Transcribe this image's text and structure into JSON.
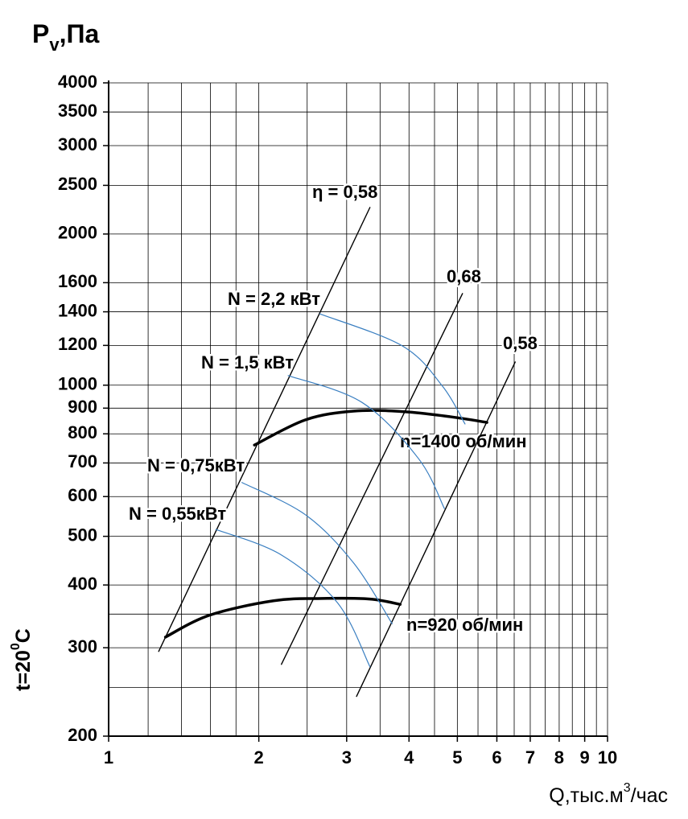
{
  "chart_data": {
    "type": "line",
    "y_label": {
      "main": "P",
      "sub": "v",
      "rest": ",Па"
    },
    "x_label": {
      "main": "Q,тыс.м",
      "sup": "3",
      "rest": "/час"
    },
    "side_label": {
      "main": "t=20",
      "sup": "0",
      "rest": "C"
    },
    "xscale": "log",
    "yscale": "log",
    "grid": true,
    "xlim": [
      1,
      10
    ],
    "ylim": [
      200,
      4000
    ],
    "xticks": [
      1,
      2,
      3,
      4,
      5,
      6,
      7,
      8,
      9,
      10
    ],
    "xminor": [
      1.2,
      1.4,
      1.6,
      1.8,
      2.5,
      3.5,
      4.5,
      5.5,
      6.5,
      7.5,
      8.5,
      9.5
    ],
    "yticks": [
      200,
      300,
      400,
      500,
      600,
      700,
      800,
      900,
      1000,
      1200,
      1400,
      1600,
      2000,
      2500,
      3000,
      3500,
      4000
    ],
    "yminor": [
      250,
      350
    ],
    "series": [
      {
        "name": "n=1400 об/мин",
        "color": "#000000",
        "width": 3.5,
        "x": [
          1.96,
          2.48,
          3.1,
          3.88,
          4.85,
          5.73
        ],
        "values": [
          760,
          853,
          888,
          886,
          865,
          843
        ]
      },
      {
        "name": "n=920 об/мин",
        "color": "#000000",
        "width": 3.5,
        "x": [
          1.3,
          1.59,
          2.14,
          2.68,
          3.34,
          3.84
        ],
        "values": [
          315,
          348,
          372,
          376,
          375,
          366
        ]
      },
      {
        "name": "η = 0,58",
        "color": "#000000",
        "width": 1.4,
        "x": [
          1.26,
          3.34
        ],
        "values": [
          295,
          2259
        ]
      },
      {
        "name": "0,68",
        "color": "#000000",
        "width": 1.4,
        "x": [
          2.22,
          5.12
        ],
        "values": [
          278,
          1522
        ]
      },
      {
        "name": "0,58",
        "color": "#000000",
        "width": 1.4,
        "x": [
          3.14,
          6.53
        ],
        "values": [
          240,
          1112
        ]
      },
      {
        "name": "N = 2,2 кВт",
        "color": "#3a7fc1",
        "width": 1.2,
        "x": [
          2.65,
          3.88,
          4.67,
          5.18
        ],
        "values": [
          1387,
          1197,
          995,
          837
        ]
      },
      {
        "name": "N = 1,5 кВт",
        "color": "#3a7fc1",
        "width": 1.2,
        "x": [
          2.29,
          3.22,
          4.18,
          4.71
        ],
        "values": [
          1045,
          924,
          714,
          568
        ]
      },
      {
        "name": "N = 0,75кВт",
        "color": "#3a7fc1",
        "width": 1.2,
        "x": [
          1.85,
          2.48,
          3.1,
          3.7
        ],
        "values": [
          640,
          552,
          442,
          335
        ]
      },
      {
        "name": "N = 0,55кВт",
        "color": "#3a7fc1",
        "width": 1.2,
        "x": [
          1.64,
          2.22,
          2.88,
          3.34
        ],
        "values": [
          516,
          459,
          368,
          275
        ]
      }
    ]
  }
}
